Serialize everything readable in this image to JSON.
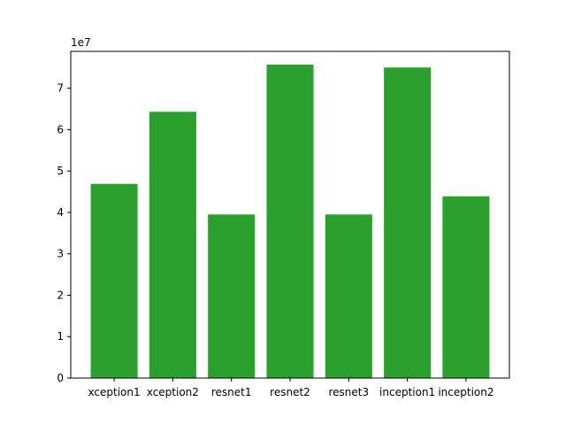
{
  "chart_data": {
    "type": "bar",
    "categories": [
      "xception1",
      "xception2",
      "resnet1",
      "resnet2",
      "resnet3",
      "inception1",
      "inception2"
    ],
    "values": [
      46900000,
      64300000,
      39500000,
      75700000,
      39500000,
      75000000,
      43900000
    ],
    "bar_color": "#2ca02c",
    "ylim": [
      0,
      78900000
    ],
    "yticks": [
      0,
      10000000,
      20000000,
      30000000,
      40000000,
      50000000,
      60000000,
      70000000
    ],
    "ytick_labels": [
      "0",
      "1",
      "2",
      "3",
      "4",
      "5",
      "6",
      "7"
    ],
    "y_scale_label": "1e7",
    "title": "",
    "xlabel": "",
    "ylabel": "",
    "grid": false
  }
}
